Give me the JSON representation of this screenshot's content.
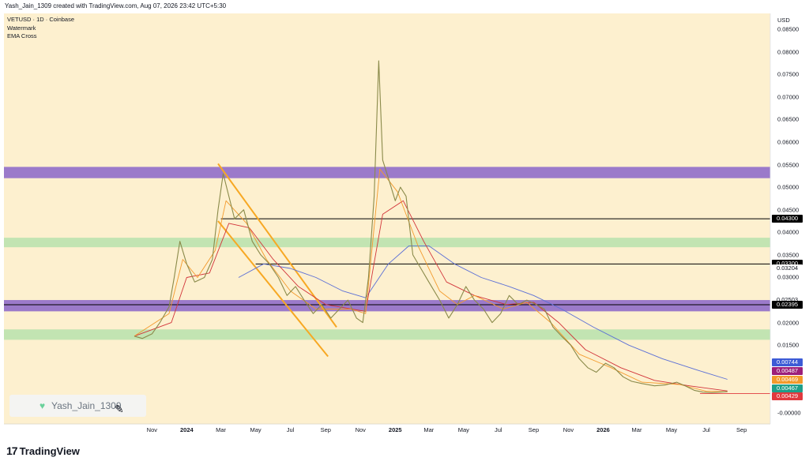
{
  "attribution": "Yash_Jain_1309 created with TradingView.com, Aug 07, 2026 23:42 UTC+5:30",
  "legend": [
    "VETUSD · 1D · Coinbase",
    "Watermark",
    "EMA Cross"
  ],
  "watermark_text": "Yash_Jain_1309",
  "brand": "TradingView",
  "colors": {
    "background": "#fdf0cf",
    "candles": "#8a8a4a",
    "ema_fast": "#f39a2c",
    "ema_mid": "#d2343a",
    "ema_slow": "#5b6fd6",
    "purple_zone": "#9673c9",
    "green_zone": "#b7e2ad",
    "channel": "#f7a823"
  },
  "chart_data": {
    "type": "line",
    "title": "VETUSD · 1D · Coinbase",
    "currency": "USD",
    "xlabel": "",
    "ylabel": "",
    "ylim": [
      -0.001,
      0.088
    ],
    "x_ticks": [
      "Nov",
      "2024",
      "Mar",
      "May",
      "Jul",
      "Sep",
      "Nov",
      "2025",
      "Mar",
      "May",
      "Jul",
      "Sep",
      "Nov",
      "2026",
      "Mar",
      "May",
      "Jul",
      "Sep"
    ],
    "y_ticks": [
      0.085,
      0.08,
      0.075,
      0.07,
      0.065,
      0.06,
      0.055,
      0.05,
      0.045,
      0.04,
      0.035,
      0.03,
      0.025,
      0.02,
      0.015,
      0.01,
      0.005,
      0.0
    ],
    "y_tick_labels": [
      "0.08500",
      "0.08000",
      "0.07500",
      "0.07000",
      "0.06500",
      "0.06000",
      "0.05500",
      "0.05000",
      "0.04500",
      "0.04000",
      "0.03500",
      "0.03000",
      "0.02500",
      "0.02000",
      "0.01500",
      "",
      "",
      "-0.00000"
    ],
    "price_path": [
      [
        "2023-10-01",
        0.017
      ],
      [
        "2023-10-15",
        0.0165
      ],
      [
        "2023-11-01",
        0.0175
      ],
      [
        "2023-11-15",
        0.02
      ],
      [
        "2023-12-01",
        0.0235
      ],
      [
        "2023-12-10",
        0.03
      ],
      [
        "2023-12-20",
        0.038
      ],
      [
        "2024-01-01",
        0.033
      ],
      [
        "2024-01-15",
        0.029
      ],
      [
        "2024-02-01",
        0.03
      ],
      [
        "2024-02-15",
        0.034
      ],
      [
        "2024-02-25",
        0.045
      ],
      [
        "2024-03-05",
        0.053
      ],
      [
        "2024-03-15",
        0.048
      ],
      [
        "2024-03-25",
        0.043
      ],
      [
        "2024-04-10",
        0.045
      ],
      [
        "2024-04-25",
        0.038
      ],
      [
        "2024-05-10",
        0.035
      ],
      [
        "2024-05-25",
        0.033
      ],
      [
        "2024-06-10",
        0.03
      ],
      [
        "2024-06-25",
        0.026
      ],
      [
        "2024-07-10",
        0.028
      ],
      [
        "2024-07-25",
        0.025
      ],
      [
        "2024-08-10",
        0.022
      ],
      [
        "2024-08-25",
        0.024
      ],
      [
        "2024-09-10",
        0.021
      ],
      [
        "2024-09-25",
        0.023
      ],
      [
        "2024-10-10",
        0.025
      ],
      [
        "2024-10-25",
        0.021
      ],
      [
        "2024-11-05",
        0.02
      ],
      [
        "2024-11-15",
        0.03
      ],
      [
        "2024-11-25",
        0.048
      ],
      [
        "2024-12-03",
        0.078
      ],
      [
        "2024-12-10",
        0.056
      ],
      [
        "2024-12-20",
        0.052
      ],
      [
        "2025-01-01",
        0.047
      ],
      [
        "2025-01-10",
        0.05
      ],
      [
        "2025-01-20",
        0.048
      ],
      [
        "2025-02-01",
        0.035
      ],
      [
        "2025-02-15",
        0.032
      ],
      [
        "2025-03-01",
        0.029
      ],
      [
        "2025-03-20",
        0.025
      ],
      [
        "2025-04-05",
        0.021
      ],
      [
        "2025-04-20",
        0.024
      ],
      [
        "2025-05-05",
        0.028
      ],
      [
        "2025-05-20",
        0.025
      ],
      [
        "2025-06-05",
        0.023
      ],
      [
        "2025-06-20",
        0.02
      ],
      [
        "2025-07-05",
        0.022
      ],
      [
        "2025-07-20",
        0.026
      ],
      [
        "2025-08-05",
        0.024
      ],
      [
        "2025-08-20",
        0.025
      ],
      [
        "2025-09-05",
        0.024
      ],
      [
        "2025-09-20",
        0.023
      ],
      [
        "2025-10-05",
        0.019
      ],
      [
        "2025-10-20",
        0.017
      ],
      [
        "2025-11-05",
        0.015
      ],
      [
        "2025-11-20",
        0.012
      ],
      [
        "2025-12-05",
        0.01
      ],
      [
        "2025-12-20",
        0.009
      ],
      [
        "2026-01-05",
        0.011
      ],
      [
        "2026-01-20",
        0.01
      ],
      [
        "2026-02-05",
        0.008
      ],
      [
        "2026-02-20",
        0.007
      ],
      [
        "2026-03-10",
        0.0065
      ],
      [
        "2026-04-01",
        0.006
      ],
      [
        "2026-04-20",
        0.0062
      ],
      [
        "2026-05-10",
        0.0068
      ],
      [
        "2026-05-25",
        0.006
      ],
      [
        "2026-06-10",
        0.005
      ],
      [
        "2026-06-25",
        0.0046
      ],
      [
        "2026-07-10",
        0.0045
      ],
      [
        "2026-07-25",
        0.0046
      ],
      [
        "2026-08-07",
        0.0047
      ]
    ],
    "ema_fast": [
      [
        "2023-10-01",
        0.017
      ],
      [
        "2023-12-01",
        0.022
      ],
      [
        "2023-12-25",
        0.034
      ],
      [
        "2024-01-20",
        0.03
      ],
      [
        "2024-02-20",
        0.036
      ],
      [
        "2024-03-10",
        0.047
      ],
      [
        "2024-04-15",
        0.042
      ],
      [
        "2024-05-20",
        0.034
      ],
      [
        "2024-07-01",
        0.027
      ],
      [
        "2024-08-15",
        0.023
      ],
      [
        "2024-10-15",
        0.023
      ],
      [
        "2024-11-10",
        0.022
      ],
      [
        "2024-12-05",
        0.054
      ],
      [
        "2025-01-05",
        0.049
      ],
      [
        "2025-02-10",
        0.037
      ],
      [
        "2025-03-20",
        0.027
      ],
      [
        "2025-04-20",
        0.024
      ],
      [
        "2025-05-20",
        0.026
      ],
      [
        "2025-07-10",
        0.023
      ],
      [
        "2025-08-20",
        0.0245
      ],
      [
        "2025-10-01",
        0.02
      ],
      [
        "2025-11-20",
        0.013
      ],
      [
        "2026-01-15",
        0.01
      ],
      [
        "2026-03-10",
        0.0068
      ],
      [
        "2026-05-15",
        0.0063
      ],
      [
        "2026-07-01",
        0.0048
      ],
      [
        "2026-08-07",
        0.00469
      ]
    ],
    "ema_mid": [
      [
        "2023-10-01",
        0.017
      ],
      [
        "2023-12-05",
        0.02
      ],
      [
        "2024-01-01",
        0.03
      ],
      [
        "2024-02-10",
        0.031
      ],
      [
        "2024-03-15",
        0.042
      ],
      [
        "2024-04-20",
        0.041
      ],
      [
        "2024-06-01",
        0.034
      ],
      [
        "2024-07-15",
        0.028
      ],
      [
        "2024-09-01",
        0.024
      ],
      [
        "2024-11-10",
        0.0225
      ],
      [
        "2024-12-10",
        0.044
      ],
      [
        "2025-01-15",
        0.047
      ],
      [
        "2025-02-20",
        0.038
      ],
      [
        "2025-04-01",
        0.029
      ],
      [
        "2025-05-20",
        0.026
      ],
      [
        "2025-07-15",
        0.024
      ],
      [
        "2025-09-01",
        0.0245
      ],
      [
        "2025-10-15",
        0.02
      ],
      [
        "2025-12-01",
        0.014
      ],
      [
        "2026-02-01",
        0.01
      ],
      [
        "2026-04-01",
        0.0072
      ],
      [
        "2026-06-01",
        0.006
      ],
      [
        "2026-08-07",
        0.00487
      ]
    ],
    "ema_slow": [
      [
        "2024-04-01",
        0.03
      ],
      [
        "2024-05-15",
        0.033
      ],
      [
        "2024-07-01",
        0.032
      ],
      [
        "2024-08-15",
        0.03
      ],
      [
        "2024-10-01",
        0.027
      ],
      [
        "2024-11-10",
        0.0255
      ],
      [
        "2024-12-20",
        0.033
      ],
      [
        "2025-01-25",
        0.037
      ],
      [
        "2025-03-01",
        0.037
      ],
      [
        "2025-04-15",
        0.033
      ],
      [
        "2025-06-01",
        0.03
      ],
      [
        "2025-07-20",
        0.028
      ],
      [
        "2025-09-01",
        0.026
      ],
      [
        "2025-10-20",
        0.023
      ],
      [
        "2025-12-15",
        0.019
      ],
      [
        "2026-02-15",
        0.015
      ],
      [
        "2026-04-15",
        0.012
      ],
      [
        "2026-06-15",
        0.0095
      ],
      [
        "2026-08-07",
        0.00744
      ]
    ],
    "zones": [
      {
        "kind": "purple",
        "from": 0.052,
        "to": 0.0545
      },
      {
        "kind": "green",
        "from": 0.0367,
        "to": 0.0388
      },
      {
        "kind": "purple",
        "from": 0.0225,
        "to": 0.025
      },
      {
        "kind": "green",
        "from": 0.0162,
        "to": 0.0185
      }
    ],
    "horizontal_lines": [
      0.043,
      0.033,
      0.02395,
      0.0043
    ],
    "channel_lines": [
      [
        [
          "2024-02-25",
          0.0552
        ],
        [
          "2024-09-20",
          0.019
        ]
      ],
      [
        [
          "2024-02-25",
          0.0425
        ],
        [
          "2024-09-05",
          0.0125
        ]
      ]
    ],
    "price_labels": [
      {
        "value": 0.043,
        "text": "0.04300",
        "style": "black"
      },
      {
        "value": 0.033,
        "text": "0.03300",
        "style": "black"
      },
      {
        "value": 0.03204,
        "text": "0.03204",
        "style": "plain"
      },
      {
        "value": 0.02503,
        "text": "0.02503",
        "style": "plain"
      },
      {
        "value": 0.02395,
        "text": "0.02395",
        "style": "black"
      },
      {
        "value": 0.00744,
        "text": "0.00744",
        "color": "#3c5bd6"
      },
      {
        "value": 0.00487,
        "text": "0.00487",
        "color": "#9c1f7a"
      },
      {
        "value": 0.00469,
        "text": "0.00469",
        "color": "#f39a2c"
      },
      {
        "value": 0.00467,
        "text": "0.00467",
        "color": "#1f9f8a"
      },
      {
        "value": 0.00429,
        "text": "0.00429",
        "color": "#e0393e"
      }
    ]
  }
}
